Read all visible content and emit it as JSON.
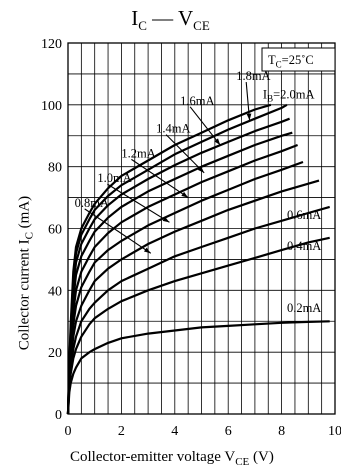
{
  "chart_data": {
    "type": "line",
    "title": {
      "main": "I",
      "sub1": "C",
      "dash": " — V",
      "sub2": "CE"
    },
    "xlabel": {
      "text": "Collector-emitter voltage  V",
      "sub": "CE",
      "unit": " (V)"
    },
    "ylabel": {
      "text": "Collector current  I",
      "sub": "C",
      "unit": "  (mA)"
    },
    "condition": {
      "pre": "T",
      "sub": "C",
      "post": "=25˚C"
    },
    "xlim": [
      0,
      10
    ],
    "ylim": [
      0,
      120
    ],
    "x_ticks": [
      "0",
      "2",
      "4",
      "6",
      "8",
      "10"
    ],
    "y_ticks": [
      "0",
      "20",
      "40",
      "60",
      "80",
      "100",
      "120"
    ],
    "grid": true,
    "series": [
      {
        "name": "0.2mA",
        "x": [
          0,
          0.05,
          0.1,
          0.2,
          0.3,
          0.5,
          0.8,
          1,
          1.5,
          2,
          3,
          4,
          5,
          6,
          7,
          8,
          9,
          9.8
        ],
        "y": [
          0,
          7,
          10,
          13,
          15,
          18,
          20,
          21,
          23,
          24.5,
          26,
          27,
          28,
          28.5,
          29,
          29.5,
          29.8,
          30
        ]
      },
      {
        "name": "0.4mA",
        "x": [
          0,
          0.05,
          0.1,
          0.2,
          0.3,
          0.5,
          0.8,
          1,
          1.5,
          2,
          3,
          4,
          5,
          6,
          7,
          8,
          9,
          9.8
        ],
        "y": [
          0,
          9,
          13,
          18,
          21,
          25,
          29,
          31,
          34,
          36.5,
          40,
          43,
          45.5,
          48,
          50.5,
          53,
          55.5,
          57
        ]
      },
      {
        "name": "0.6mA",
        "x": [
          0,
          0.05,
          0.1,
          0.2,
          0.3,
          0.5,
          0.8,
          1,
          1.5,
          2,
          3,
          4,
          5,
          6,
          7,
          8,
          9,
          9.8
        ],
        "y": [
          0,
          10,
          15,
          21,
          25,
          30,
          34,
          36,
          40,
          43,
          47,
          51,
          54,
          57,
          60,
          62.5,
          65,
          67
        ]
      },
      {
        "name": "0.8mA",
        "x": [
          0,
          0.05,
          0.1,
          0.2,
          0.3,
          0.5,
          0.8,
          1,
          1.5,
          2,
          3,
          4,
          5,
          6,
          7,
          8,
          9,
          9.4
        ],
        "y": [
          0,
          11,
          17,
          25,
          30,
          35,
          40,
          43,
          47,
          50,
          55,
          59,
          62.5,
          66,
          69,
          72,
          74.5,
          75.5
        ]
      },
      {
        "name": "1.0mA",
        "x": [
          0,
          0.05,
          0.1,
          0.2,
          0.3,
          0.5,
          0.8,
          1,
          1.5,
          2,
          3,
          4,
          5,
          6,
          7,
          8,
          8.8
        ],
        "y": [
          0,
          12,
          19,
          29,
          35,
          41,
          46,
          49,
          53,
          56,
          61,
          65,
          69,
          72.5,
          76,
          79,
          81.5
        ]
      },
      {
        "name": "1.2mA",
        "x": [
          0,
          0.05,
          0.1,
          0.2,
          0.3,
          0.5,
          0.8,
          1,
          1.5,
          2,
          3,
          4,
          5,
          6,
          7,
          8,
          8.6
        ],
        "y": [
          0,
          13,
          21,
          33,
          40,
          46,
          51,
          54,
          58.5,
          62,
          67,
          71,
          75,
          78.5,
          82,
          85,
          87
        ]
      },
      {
        "name": "1.4mA",
        "x": [
          0,
          0.05,
          0.1,
          0.2,
          0.3,
          0.5,
          0.8,
          1,
          1.5,
          2,
          3,
          4,
          5,
          6,
          7,
          8,
          8.4
        ],
        "y": [
          0,
          14,
          23,
          37,
          45,
          51,
          56,
          59,
          63.5,
          67,
          72,
          76,
          80,
          83.5,
          87,
          90,
          91
        ]
      },
      {
        "name": "1.6mA",
        "x": [
          0,
          0.05,
          0.1,
          0.2,
          0.3,
          0.5,
          0.8,
          1,
          1.5,
          2,
          3,
          4,
          5,
          6,
          7,
          8,
          8.3
        ],
        "y": [
          0,
          15,
          25,
          41,
          49,
          55,
          60,
          63,
          67.5,
          71,
          76,
          80.5,
          84.5,
          88,
          91.5,
          94.5,
          95.5
        ]
      },
      {
        "name": "1.8mA",
        "x": [
          0,
          0.05,
          0.1,
          0.2,
          0.3,
          0.5,
          0.8,
          1,
          1.5,
          2,
          3,
          4,
          5,
          6,
          7,
          8,
          8.2
        ],
        "y": [
          0,
          16,
          27,
          44,
          52,
          58,
          63,
          66,
          70.5,
          74,
          79,
          84,
          88,
          92,
          95.5,
          99,
          100
        ]
      },
      {
        "name": "2.0mA",
        "x": [
          0,
          0.05,
          0.1,
          0.2,
          0.3,
          0.5,
          0.8,
          1,
          1.5,
          2,
          3,
          4,
          5,
          6,
          7,
          7.6
        ],
        "y": [
          0,
          17,
          29,
          46,
          54,
          60,
          65,
          68,
          73,
          77,
          82,
          87,
          91,
          95,
          98.5,
          100
        ]
      }
    ],
    "curve_labels": [
      {
        "series": "1.8mA",
        "pre": "",
        "sub": "",
        "text": "1.8mA",
        "x": 6.3,
        "y": 108,
        "arrow_to": [
          6.8,
          95
        ]
      },
      {
        "series": "1.6mA",
        "pre": "",
        "sub": "",
        "text": "1.6mA",
        "x": 4.2,
        "y": 100,
        "arrow_to": [
          5.7,
          87
        ]
      },
      {
        "series": "1.4mA",
        "pre": "",
        "sub": "",
        "text": "1.4mA",
        "x": 3.3,
        "y": 91,
        "arrow_to": [
          5.1,
          78
        ]
      },
      {
        "series": "1.2mA",
        "pre": "",
        "sub": "",
        "text": "1.2mA",
        "x": 2.0,
        "y": 83,
        "arrow_to": [
          4.5,
          70
        ]
      },
      {
        "series": "1.0mA",
        "pre": "",
        "sub": "",
        "text": "1.0mA",
        "x": 1.1,
        "y": 75,
        "arrow_to": [
          3.8,
          62
        ]
      },
      {
        "series": "0.8mA",
        "pre": "",
        "sub": "",
        "text": "0.8mA",
        "x": 0.25,
        "y": 67,
        "arrow_to": [
          3.1,
          52
        ]
      },
      {
        "series": "0.6mA",
        "pre": "",
        "sub": "",
        "text": "0.6mA",
        "x": 8.2,
        "y": 63,
        "arrow_to": null
      },
      {
        "series": "0.4mA",
        "pre": "",
        "sub": "",
        "text": "0.4mA",
        "x": 8.2,
        "y": 53,
        "arrow_to": null
      },
      {
        "series": "0.2mA",
        "pre": "",
        "sub": "",
        "text": "0.2mA",
        "x": 8.2,
        "y": 33,
        "arrow_to": null
      },
      {
        "series": "2.0mA",
        "pre": "I",
        "sub": "B",
        "text": "=2.0mA",
        "x": 7.3,
        "y": 102,
        "arrow_to": null
      }
    ]
  }
}
